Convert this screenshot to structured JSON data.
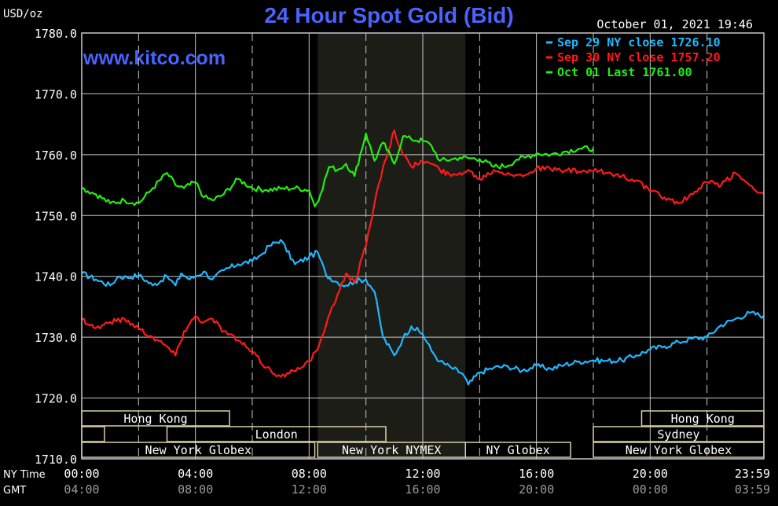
{
  "header": {
    "title": "24 Hour Spot Gold (Bid)",
    "unit": "USD/oz",
    "timestamp": "October 01, 2021 19:46",
    "website": "www.kitco.com"
  },
  "chart_data": {
    "type": "line",
    "title": "24 Hour Spot Gold (Bid)",
    "ylabel": "USD/oz",
    "ylim": [
      1710,
      1780
    ],
    "yticks": [
      "1780.0",
      "1770.0",
      "1760.0",
      "1750.0",
      "1740.0",
      "1730.0",
      "1720.0",
      "1710.0"
    ],
    "x_rows": [
      {
        "label": "NY Time",
        "ticks": [
          "00:00",
          "04:00",
          "08:00",
          "12:00",
          "16:00",
          "20:00",
          "23:59"
        ]
      },
      {
        "label": "GMT",
        "ticks": [
          "04:00",
          "08:00",
          "12:00",
          "16:00",
          "20:00",
          "00:00",
          "03:59"
        ]
      }
    ],
    "x_unit": "NY time (hours)",
    "xlim": [
      0,
      24
    ],
    "shaded_region": {
      "label": "New York NYMEX",
      "start": 8.3,
      "end": 13.5,
      "color": "#1b1d16"
    },
    "grid": true,
    "legend_position": "top-right",
    "series": [
      {
        "name": "Sep 29 NY close 1726.10",
        "color": "#1fb8ff",
        "x": [
          0,
          0.5,
          1,
          1.3,
          1.6,
          2,
          2.5,
          3,
          3.3,
          3.5,
          3.8,
          4,
          4.3,
          4.6,
          5,
          5.5,
          6,
          6.3,
          6.6,
          7,
          7.5,
          8,
          8.3,
          8.6,
          9,
          9.3,
          9.6,
          10,
          10.3,
          10.6,
          11,
          11.3,
          11.6,
          12,
          12.3,
          12.6,
          13,
          13.4,
          13.6,
          14,
          14.5,
          15,
          15.5,
          16,
          16.5,
          17,
          17.5,
          18,
          18.5,
          19,
          19.5,
          20,
          20.5,
          21,
          21.5,
          22,
          22.5,
          23,
          23.5,
          23.99
        ],
        "values": [
          1740.5,
          1739.5,
          1738.5,
          1740,
          1739.8,
          1740.2,
          1738.5,
          1740,
          1738.5,
          1740.5,
          1739.5,
          1740,
          1740.8,
          1739.5,
          1741,
          1742,
          1742.5,
          1743.5,
          1745,
          1746,
          1742,
          1743.2,
          1744,
          1740.2,
          1739,
          1738.5,
          1739.2,
          1739.5,
          1737.5,
          1730,
          1727,
          1729.8,
          1731.8,
          1730.5,
          1727.8,
          1726,
          1725,
          1724,
          1722.2,
          1724.2,
          1725,
          1725.2,
          1724.5,
          1725.3,
          1724.8,
          1725.5,
          1726,
          1726.2,
          1726.1,
          1726.2,
          1727,
          1728,
          1728.5,
          1729.2,
          1729.8,
          1730,
          1732,
          1733,
          1734,
          1733.5
        ]
      },
      {
        "name": "Sep 30 NY close 1757.20",
        "color": "#ff1a1a",
        "x": [
          0,
          0.5,
          1,
          1.5,
          2,
          2.5,
          3,
          3.3,
          3.6,
          4,
          4.3,
          4.6,
          5,
          5.5,
          6,
          6.5,
          7,
          7.3,
          7.6,
          8,
          8.3,
          8.6,
          9,
          9.3,
          9.6,
          10,
          10.3,
          10.6,
          11,
          11.3,
          11.6,
          12,
          12.3,
          12.6,
          13,
          13.3,
          13.6,
          14,
          14.5,
          15,
          15.5,
          16,
          16.5,
          17,
          17.5,
          18,
          18.5,
          19,
          19.5,
          20,
          20.5,
          21,
          21.5,
          22,
          22.5,
          23,
          23.5,
          23.99
        ],
        "values": [
          1733,
          1731.5,
          1732.5,
          1733,
          1731.5,
          1730,
          1728.5,
          1727,
          1731,
          1733.5,
          1732.5,
          1733,
          1731,
          1729.5,
          1727.5,
          1725,
          1723.5,
          1724,
          1725,
          1726,
          1728,
          1732,
          1737,
          1740.5,
          1739,
          1745,
          1752,
          1758,
          1764,
          1760,
          1758,
          1759,
          1758.5,
          1757.5,
          1756.5,
          1757,
          1757.5,
          1756,
          1757.5,
          1757,
          1756.5,
          1757.8,
          1757.6,
          1757.4,
          1757.2,
          1757.3,
          1757,
          1756.5,
          1755.8,
          1754,
          1753,
          1752,
          1753.5,
          1755.5,
          1755,
          1757,
          1755,
          1753.6
        ]
      },
      {
        "name": "Oct 01 Last 1761.00",
        "color": "#22ee11",
        "x": [
          0,
          0.5,
          1,
          1.5,
          2,
          2.5,
          3,
          3.3,
          3.6,
          4,
          4.3,
          4.6,
          5,
          5.5,
          6,
          6.5,
          7,
          7.5,
          8,
          8.2,
          8.4,
          8.7,
          9,
          9.3,
          9.6,
          10,
          10.3,
          10.6,
          11,
          11.3,
          11.6,
          12,
          12.3,
          12.6,
          13,
          13.3,
          13.6,
          14,
          14.5,
          15,
          15.3,
          15.6,
          16,
          16.5,
          17,
          17.5,
          18
        ],
        "values": [
          1754.5,
          1753.5,
          1752,
          1752.5,
          1752,
          1754.5,
          1757,
          1755,
          1754.5,
          1755.5,
          1753,
          1752.5,
          1753.5,
          1756,
          1754.5,
          1754.2,
          1754.4,
          1754.5,
          1754.2,
          1751.5,
          1753.5,
          1758,
          1757.5,
          1758.5,
          1756.5,
          1763.5,
          1759,
          1762,
          1758.5,
          1763,
          1762.5,
          1762.3,
          1761.5,
          1759,
          1759.2,
          1759.5,
          1759.4,
          1759.3,
          1758,
          1758.2,
          1759.2,
          1759.5,
          1760.2,
          1760,
          1760.5,
          1761,
          1761
        ]
      }
    ],
    "sessions": [
      {
        "label": "Hong Kong",
        "row": 0,
        "start": -0.5,
        "end": 5.2
      },
      {
        "label": "",
        "row": 1,
        "start": -0.5,
        "end": 0.8
      },
      {
        "label": "London",
        "row": 1,
        "start": 3.0,
        "end": 10.7
      },
      {
        "label": "New York Globex",
        "row": 2,
        "start": -0.5,
        "end": 8.2
      },
      {
        "label": "New York NYMEX",
        "row": 2,
        "start": 8.3,
        "end": 13.5
      },
      {
        "label": "NY Globex",
        "row": 2,
        "start": 13.5,
        "end": 17.2
      },
      {
        "label": "Hong Kong",
        "row": 0,
        "start": 19.7,
        "end": 24.5
      },
      {
        "label": "Sydney",
        "row": 1,
        "start": 18.0,
        "end": 24.5
      },
      {
        "label": "New York Globex",
        "row": 2,
        "start": 18.0,
        "end": 24.5
      }
    ]
  }
}
